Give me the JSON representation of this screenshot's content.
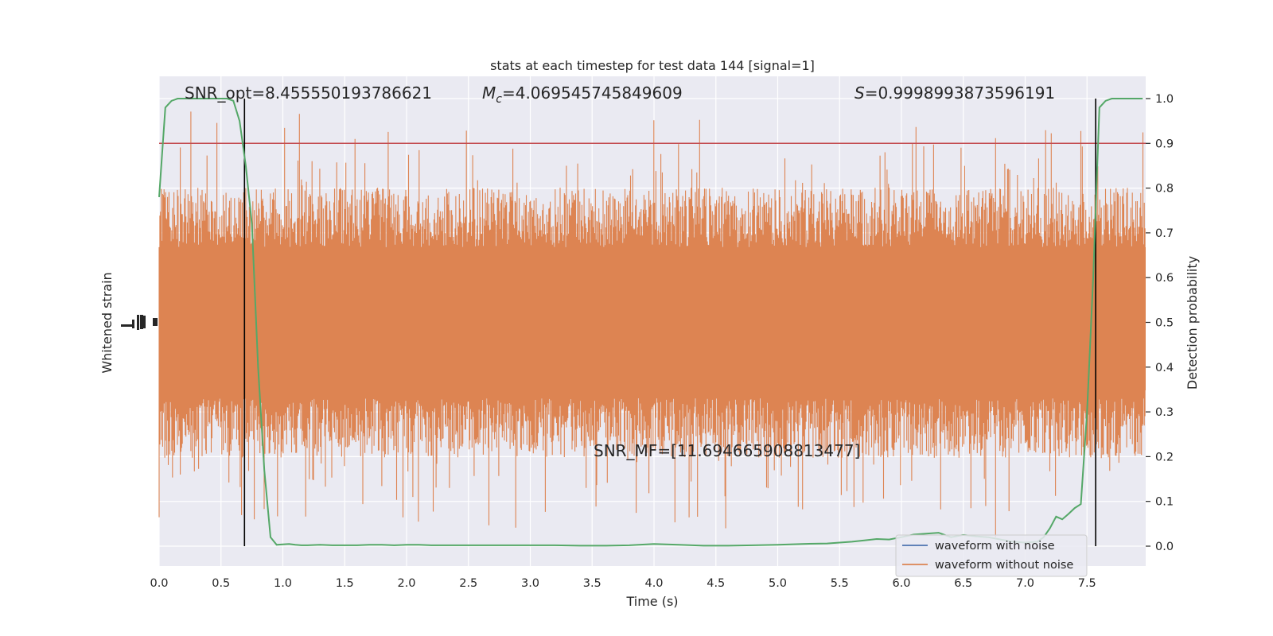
{
  "chart_data": {
    "type": "line",
    "title": "stats at each timestep for test data 144 [signal=1]",
    "xlabel": "Time (s)",
    "ylabel_left": "Whitened strain",
    "ylabel_right": "Detection probability",
    "xlim": [
      0.0,
      8.0
    ],
    "ylim_right": [
      -0.05,
      1.05
    ],
    "xticks": [
      "0.0",
      "0.5",
      "1.0",
      "1.5",
      "2.0",
      "2.5",
      "3.0",
      "3.5",
      "4.0",
      "4.5",
      "5.0",
      "5.5",
      "6.0",
      "6.5",
      "7.0",
      "7.5"
    ],
    "yticks_right": [
      "0.0",
      "0.1",
      "0.2",
      "0.3",
      "0.4",
      "0.5",
      "0.6",
      "0.7",
      "0.8",
      "0.9",
      "1.0"
    ],
    "grid": true,
    "legend_position": "lower-right",
    "annotations": {
      "snr_opt": "SNR_opt=8.455550193786621",
      "mc_label": "M",
      "mc_sub": "c",
      "mc_value": "=4.069545745849609",
      "s_label": "S",
      "s_value": "=0.9998993873596191",
      "snr_mf": "SNR_MF=[11.694665908813477]"
    },
    "threshold": 0.9,
    "event_lines_x": [
      0.69,
      7.57
    ],
    "series": [
      {
        "name": "waveform with noise",
        "color": "#4c72b0",
        "style": "line"
      },
      {
        "name": "waveform without noise",
        "color": "#dd8452",
        "style": "noise"
      },
      {
        "name": "",
        "color": "#55a868",
        "x": [
          0.0,
          0.05,
          0.1,
          0.15,
          0.2,
          0.25,
          0.3,
          0.35,
          0.4,
          0.45,
          0.5,
          0.55,
          0.6,
          0.65,
          0.7,
          0.75,
          0.8,
          0.85,
          0.9,
          0.95,
          1.0,
          1.05,
          1.1,
          1.15,
          1.2,
          1.3,
          1.4,
          1.5,
          1.6,
          1.7,
          1.8,
          1.9,
          2.0,
          2.1,
          2.2,
          2.3,
          2.4,
          2.5,
          2.6,
          2.7,
          2.8,
          2.9,
          3.0,
          3.2,
          3.4,
          3.6,
          3.8,
          4.0,
          4.2,
          4.4,
          4.6,
          4.8,
          5.0,
          5.2,
          5.4,
          5.6,
          5.7,
          5.8,
          5.9,
          6.0,
          6.1,
          6.2,
          6.3,
          6.4,
          6.5,
          6.6,
          6.7,
          6.8,
          6.9,
          7.0,
          7.1,
          7.15,
          7.2,
          7.25,
          7.3,
          7.35,
          7.4,
          7.45,
          7.5,
          7.55,
          7.6,
          7.65,
          7.7,
          7.75,
          7.8,
          7.85,
          7.9,
          7.95
        ],
        "values": [
          0.78,
          0.98,
          0.995,
          1.0,
          1.0,
          1.0,
          1.0,
          1.0,
          1.0,
          1.0,
          1.0,
          1.0,
          0.995,
          0.95,
          0.85,
          0.72,
          0.4,
          0.17,
          0.02,
          0.003,
          0.004,
          0.005,
          0.003,
          0.002,
          0.002,
          0.003,
          0.002,
          0.002,
          0.002,
          0.003,
          0.003,
          0.002,
          0.003,
          0.003,
          0.002,
          0.002,
          0.002,
          0.002,
          0.002,
          0.002,
          0.002,
          0.002,
          0.002,
          0.002,
          0.001,
          0.001,
          0.002,
          0.005,
          0.003,
          0.001,
          0.001,
          0.002,
          0.003,
          0.005,
          0.006,
          0.01,
          0.013,
          0.016,
          0.015,
          0.02,
          0.026,
          0.028,
          0.03,
          0.02,
          0.025,
          0.022,
          0.02,
          0.015,
          0.01,
          0.008,
          0.01,
          0.02,
          0.04,
          0.066,
          0.06,
          0.072,
          0.085,
          0.094,
          0.3,
          0.6,
          0.98,
          0.995,
          1.0,
          1.0,
          1.0,
          1.0,
          1.0,
          1.0
        ]
      }
    ]
  }
}
